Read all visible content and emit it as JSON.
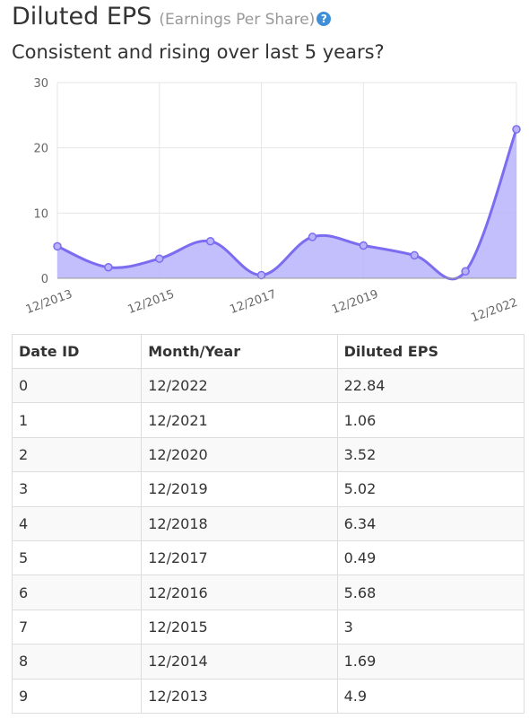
{
  "header": {
    "title": "Diluted EPS",
    "title_sub": "(Earnings Per Share)",
    "help_icon": "?",
    "subtitle": "Consistent and rising over last 5 years?"
  },
  "colors": {
    "line": "#7b6cf0",
    "fill": "#b9b3fb",
    "grid": "#e6e6e6",
    "help_icon": "#3f8fd8"
  },
  "chart_data": {
    "type": "area",
    "curve": "smooth",
    "x": [
      "12/2013",
      "12/2014",
      "12/2015",
      "12/2016",
      "12/2017",
      "12/2018",
      "12/2019",
      "12/2020",
      "12/2021",
      "12/2022"
    ],
    "x_tick_labels": [
      "12/2013",
      "12/2015",
      "12/2017",
      "12/2019",
      "12/2022"
    ],
    "y_tick_labels": [
      0,
      10,
      20,
      30
    ],
    "ylim": [
      0,
      30
    ],
    "grid": true,
    "series": [
      {
        "values": [
          4.9,
          1.69,
          3,
          5.68,
          0.49,
          6.34,
          5.02,
          3.52,
          1.06,
          22.84
        ]
      }
    ]
  },
  "table": {
    "headers": [
      "Date ID",
      "Month/Year",
      "Diluted EPS"
    ],
    "rows": [
      [
        "0",
        "12/2022",
        "22.84"
      ],
      [
        "1",
        "12/2021",
        "1.06"
      ],
      [
        "2",
        "12/2020",
        "3.52"
      ],
      [
        "3",
        "12/2019",
        "5.02"
      ],
      [
        "4",
        "12/2018",
        "6.34"
      ],
      [
        "5",
        "12/2017",
        "0.49"
      ],
      [
        "6",
        "12/2016",
        "5.68"
      ],
      [
        "7",
        "12/2015",
        "3"
      ],
      [
        "8",
        "12/2014",
        "1.69"
      ],
      [
        "9",
        "12/2013",
        "4.9"
      ]
    ]
  }
}
